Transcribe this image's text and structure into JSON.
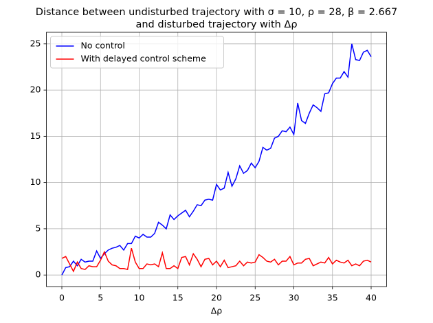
{
  "chart_data": {
    "type": "line",
    "title": [
      "Distance between undisturbed trajectory with σ = 10, ρ = 28, β = 2.667",
      "and disturbed trajectory with Δρ"
    ],
    "xlabel": "Δρ",
    "x": [
      0,
      0.5,
      1,
      1.5,
      2,
      2.5,
      3,
      3.5,
      4,
      4.5,
      5,
      5.5,
      6,
      6.5,
      7,
      7.5,
      8,
      8.5,
      9,
      9.5,
      10,
      10.5,
      11,
      11.5,
      12,
      12.5,
      13,
      13.5,
      14,
      14.5,
      15,
      15.5,
      16,
      16.5,
      17,
      17.5,
      18,
      18.5,
      19,
      19.5,
      20,
      20.5,
      21,
      21.5,
      22,
      22.5,
      23,
      23.5,
      24,
      24.5,
      25,
      25.5,
      26,
      26.5,
      27,
      27.5,
      28,
      28.5,
      29,
      29.5,
      30,
      30.5,
      31,
      31.5,
      32,
      32.5,
      33,
      33.5,
      34,
      34.5,
      35,
      35.5,
      36,
      36.5,
      37,
      37.5,
      38,
      38.5,
      39,
      39.5,
      40
    ],
    "series": [
      {
        "name": "No control",
        "color": "#0000ff",
        "values": [
          0,
          0.8,
          0.9,
          1.5,
          1.0,
          1.7,
          1.4,
          1.5,
          1.5,
          2.6,
          1.8,
          2.3,
          2.7,
          2.9,
          3.0,
          3.2,
          2.7,
          3.4,
          3.4,
          4.2,
          4.0,
          4.4,
          4.1,
          4.1,
          4.5,
          5.7,
          5.4,
          5.0,
          6.5,
          6.0,
          6.4,
          6.7,
          7.0,
          6.3,
          6.9,
          7.6,
          7.5,
          8.1,
          8.2,
          8.1,
          9.8,
          9.2,
          9.4,
          11.1,
          9.6,
          10.4,
          11.8,
          11.0,
          11.3,
          12.1,
          11.6,
          12.3,
          13.8,
          13.5,
          13.7,
          14.8,
          15.0,
          15.6,
          15.5,
          16.0,
          15.2,
          18.6,
          16.7,
          16.4,
          17.5,
          18.4,
          18.1,
          17.7,
          19.6,
          19.7,
          20.7,
          21.3,
          21.3,
          22.0,
          21.4,
          25.0,
          23.3,
          23.2,
          24.1,
          24.3,
          23.6
        ]
      },
      {
        "name": "With delayed control scheme",
        "color": "#ff0000",
        "values": [
          1.8,
          2.0,
          1.2,
          0.4,
          1.4,
          0.7,
          0.6,
          1.0,
          0.9,
          0.9,
          1.6,
          2.5,
          1.5,
          1.1,
          1.0,
          0.7,
          0.7,
          0.6,
          2.9,
          1.4,
          0.7,
          0.7,
          1.2,
          1.1,
          1.2,
          0.9,
          2.4,
          0.7,
          0.7,
          1.0,
          0.7,
          1.9,
          2.0,
          1.1,
          2.3,
          1.7,
          0.9,
          1.7,
          1.8,
          1.1,
          1.5,
          0.9,
          1.6,
          0.8,
          0.9,
          1.0,
          1.5,
          1.0,
          1.4,
          1.3,
          1.4,
          2.2,
          1.9,
          1.5,
          1.4,
          1.7,
          1.1,
          1.5,
          1.5,
          2.0,
          1.1,
          1.3,
          1.3,
          1.7,
          1.8,
          1.0,
          1.2,
          1.4,
          1.3,
          1.9,
          1.2,
          1.6,
          1.4,
          1.3,
          1.6,
          1.0,
          1.2,
          1.0,
          1.5,
          1.6,
          1.4
        ]
      }
    ],
    "xlim": [
      -2,
      42
    ],
    "xticks": [
      0,
      5,
      10,
      15,
      20,
      25,
      30,
      35,
      40
    ],
    "ylim": [
      -1.25,
      26.25
    ],
    "yticks": [
      0,
      5,
      10,
      15,
      20,
      25
    ],
    "grid": true,
    "legend": "upper left"
  }
}
